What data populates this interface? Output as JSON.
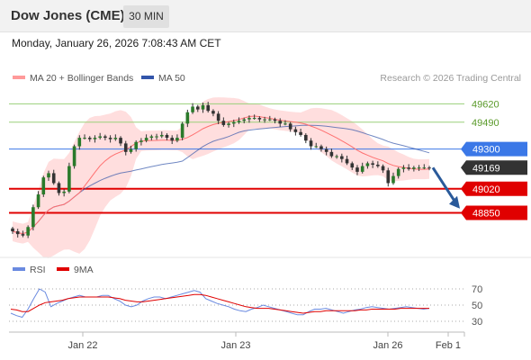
{
  "header": {
    "title": "Dow Jones (CME)",
    "interval": "30 MIN",
    "timestamp": "Monday, January 26, 2026 7:08:43 AM CET"
  },
  "legend": {
    "ma20_bb": "MA 20 + Bollinger Bands",
    "ma50": "MA 50",
    "copyright": "Research © 2026 Trading Central"
  },
  "rsi_legend": {
    "rsi": "RSI",
    "ma9": "9MA"
  },
  "colors": {
    "candle": "#2a7a2a",
    "ma20": "#ff7070",
    "ma50": "#3355aa",
    "band_fill": "#ffd3d3",
    "support_line": "#e00000",
    "resistance_line": "#9ad07a",
    "pivot_line": "#3b78e7",
    "last_price_tag": "#333333",
    "arrow": "#2a5a9a",
    "rsi_line": "#6a8ae0"
  },
  "chart_data": [
    {
      "type": "candlestick",
      "ylim": [
        48650,
        49730
      ],
      "x_ticks": [
        "Jan 22",
        "Jan 23",
        "Jan 26",
        "Feb 1"
      ],
      "series": [
        {
          "name": "MA 20 + Bollinger Bands"
        },
        {
          "name": "MA 50"
        }
      ],
      "price_levels": [
        {
          "label": "49620",
          "value": 49620,
          "kind": "resistance"
        },
        {
          "label": "49490",
          "value": 49490,
          "kind": "resistance"
        },
        {
          "label": "49300",
          "value": 49300,
          "kind": "pivot"
        },
        {
          "label": "49169",
          "value": 49169,
          "kind": "last"
        },
        {
          "label": "49020",
          "value": 49020,
          "kind": "support"
        },
        {
          "label": "48850",
          "value": 48850,
          "kind": "support"
        }
      ],
      "close": [
        48720,
        48700,
        48690,
        48750,
        48890,
        48980,
        49100,
        49130,
        49060,
        48990,
        49000,
        49180,
        49320,
        49380,
        49380,
        49370,
        49380,
        49390,
        49380,
        49370,
        49380,
        49340,
        49280,
        49300,
        49350,
        49360,
        49380,
        49390,
        49390,
        49400,
        49380,
        49360,
        49380,
        49480,
        49560,
        49600,
        49580,
        49610,
        49570,
        49550,
        49500,
        49470,
        49480,
        49490,
        49500,
        49510,
        49520,
        49520,
        49510,
        49510,
        49510,
        49500,
        49480,
        49480,
        49440,
        49420,
        49400,
        49360,
        49320,
        49320,
        49300,
        49280,
        49250,
        49250,
        49230,
        49200,
        49170,
        49140,
        49180,
        49200,
        49190,
        49180,
        49150,
        49060,
        49110,
        49160,
        49170,
        49160,
        49170,
        49170,
        49170,
        49169
      ]
    },
    {
      "type": "line",
      "ylim": [
        20,
        80
      ],
      "y_ticks": [
        70,
        50,
        30
      ],
      "series": [
        {
          "name": "RSI",
          "values": [
            40,
            37,
            35,
            45,
            58,
            70,
            66,
            48,
            52,
            55,
            58,
            60,
            62,
            60,
            60,
            60,
            62,
            62,
            58,
            55,
            50,
            48,
            50,
            55,
            58,
            60,
            60,
            58,
            60,
            62,
            64,
            66,
            68,
            66,
            58,
            55,
            52,
            50,
            48,
            45,
            43,
            42,
            45,
            47,
            50,
            48,
            46,
            44,
            42,
            40,
            38,
            38,
            42,
            45,
            45,
            46,
            44,
            42,
            40,
            42,
            44,
            45,
            47,
            48,
            47,
            46,
            45,
            46,
            47,
            48,
            47,
            46,
            45,
            46
          ]
        },
        {
          "name": "9MA",
          "values": [
            45,
            44,
            42,
            42,
            46,
            50,
            53,
            54,
            55,
            56,
            58,
            59,
            60,
            60,
            60,
            60,
            60,
            60,
            59,
            58,
            56,
            55,
            54,
            54,
            55,
            56,
            57,
            58,
            59,
            60,
            61,
            62,
            63,
            63,
            62,
            60,
            58,
            56,
            54,
            52,
            50,
            48,
            47,
            46,
            46,
            46,
            45,
            44,
            43,
            42,
            41,
            40,
            41,
            42,
            42,
            43,
            43,
            43,
            43,
            43,
            43,
            44,
            44,
            45,
            45,
            45,
            45,
            45,
            46,
            46,
            46,
            46,
            46,
            46
          ]
        }
      ]
    }
  ]
}
